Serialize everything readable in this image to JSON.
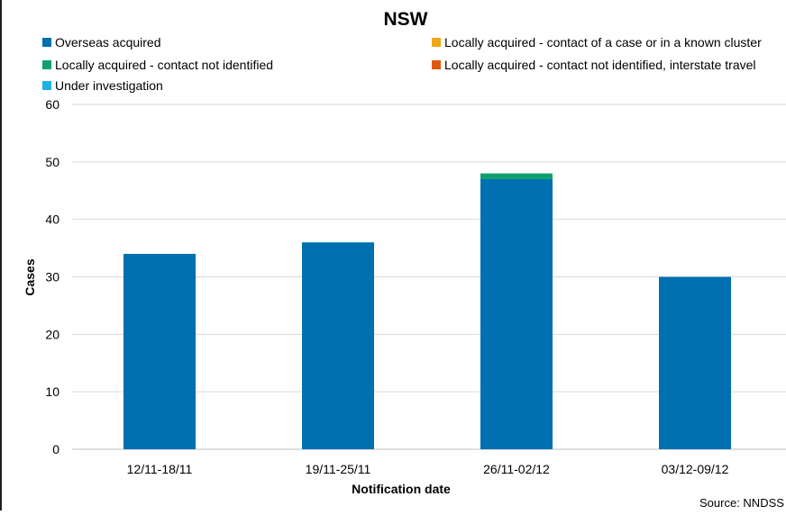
{
  "chart_data": {
    "type": "bar",
    "stacked": true,
    "title": "NSW",
    "xlabel": "Notification date",
    "ylabel": "Cases",
    "ylim": [
      0,
      60
    ],
    "yticks": [
      0,
      10,
      20,
      30,
      40,
      50,
      60
    ],
    "grid": true,
    "legend_position": "top",
    "categories": [
      "12/11-18/11",
      "19/11-25/11",
      "26/11-02/12",
      "03/12-09/12"
    ],
    "series": [
      {
        "name": "Overseas acquired",
        "color": "#0070b0",
        "values": [
          34,
          36,
          47,
          30
        ]
      },
      {
        "name": "Locally acquired - contact of a case or in a known cluster",
        "color": "#f0a818",
        "values": [
          0,
          0,
          0,
          0
        ]
      },
      {
        "name": "Locally acquired - contact not identified",
        "color": "#10a070",
        "values": [
          0,
          0,
          1,
          0
        ]
      },
      {
        "name": "Locally acquired - contact not identified, interstate travel",
        "color": "#e05810",
        "values": [
          0,
          0,
          0,
          0
        ]
      },
      {
        "name": "Under investigation",
        "color": "#20b0e8",
        "values": [
          0,
          0,
          0,
          0
        ]
      }
    ],
    "source": "Source: NNDSS"
  }
}
